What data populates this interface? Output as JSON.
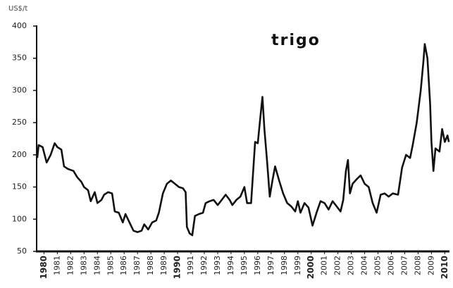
{
  "chart_data": {
    "type": "line",
    "title": "trigo",
    "y_label": "US$/t",
    "x": [
      1979.5,
      1979.6,
      1979.9,
      1980.2,
      1980.5,
      1980.8,
      1981.0,
      1981.3,
      1981.5,
      1981.8,
      1982.2,
      1982.5,
      1982.8,
      1983.0,
      1983.3,
      1983.5,
      1983.8,
      1984.0,
      1984.3,
      1984.5,
      1984.8,
      1985.1,
      1985.3,
      1985.6,
      1985.9,
      1986.1,
      1986.4,
      1986.7,
      1987.0,
      1987.3,
      1987.5,
      1987.8,
      1988.1,
      1988.4,
      1988.6,
      1988.9,
      1989.2,
      1989.5,
      1989.8,
      1990.1,
      1990.4,
      1990.6,
      1990.7,
      1990.9,
      1991.1,
      1991.3,
      1991.6,
      1991.9,
      1992.1,
      1992.4,
      1992.7,
      1993.0,
      1993.3,
      1993.6,
      1993.9,
      1994.1,
      1994.4,
      1994.7,
      1995.0,
      1995.2,
      1995.5,
      1995.8,
      1996.0,
      1996.2,
      1996.35,
      1996.5,
      1996.7,
      1996.9,
      1997.1,
      1997.3,
      1997.6,
      1997.9,
      1998.2,
      1998.5,
      1998.8,
      1999.0,
      1999.2,
      1999.5,
      1999.8,
      2000.1,
      2000.4,
      2000.7,
      2001.0,
      2001.3,
      2001.6,
      2001.9,
      2002.2,
      2002.4,
      2002.6,
      2002.75,
      2002.9,
      2003.1,
      2003.4,
      2003.7,
      2004.0,
      2004.3,
      2004.6,
      2004.9,
      2005.2,
      2005.5,
      2005.8,
      2006.1,
      2006.5,
      2006.8,
      2007.1,
      2007.4,
      2007.6,
      2007.9,
      2008.2,
      2008.4,
      2008.5,
      2008.7,
      2008.9,
      2009.0,
      2009.15,
      2009.3,
      2009.6,
      2009.8,
      2010.0,
      2010.2,
      2010.3
    ],
    "values": [
      195,
      215,
      212,
      188,
      200,
      218,
      212,
      208,
      182,
      178,
      175,
      165,
      158,
      150,
      145,
      128,
      142,
      125,
      130,
      138,
      142,
      140,
      112,
      110,
      95,
      108,
      95,
      82,
      80,
      82,
      92,
      84,
      95,
      98,
      110,
      140,
      155,
      160,
      155,
      150,
      148,
      142,
      88,
      78,
      75,
      105,
      108,
      110,
      125,
      128,
      130,
      122,
      130,
      138,
      130,
      122,
      130,
      135,
      150,
      125,
      125,
      220,
      218,
      260,
      290,
      240,
      190,
      135,
      160,
      182,
      160,
      140,
      125,
      120,
      112,
      128,
      110,
      125,
      118,
      90,
      110,
      128,
      125,
      115,
      128,
      120,
      112,
      130,
      175,
      192,
      140,
      155,
      162,
      168,
      155,
      150,
      125,
      110,
      138,
      140,
      135,
      140,
      138,
      180,
      200,
      195,
      215,
      250,
      300,
      345,
      372,
      350,
      280,
      220,
      175,
      210,
      205,
      240,
      220,
      230,
      220
    ],
    "color": "#111111",
    "xlim": [
      1979.45,
      2010.35
    ],
    "xticks": [
      1980,
      1981,
      1982,
      1983,
      1984,
      1985,
      1986,
      1987,
      1988,
      1989,
      1990,
      1991,
      1992,
      1993,
      1994,
      1995,
      1996,
      1997,
      1998,
      1999,
      2000,
      2001,
      2002,
      2003,
      2004,
      2005,
      2006,
      2007,
      2008,
      2009,
      2010
    ],
    "ylim": [
      50,
      400
    ],
    "yticks": [
      50,
      100,
      150,
      200,
      250,
      300,
      350,
      400
    ],
    "grid": false
  }
}
